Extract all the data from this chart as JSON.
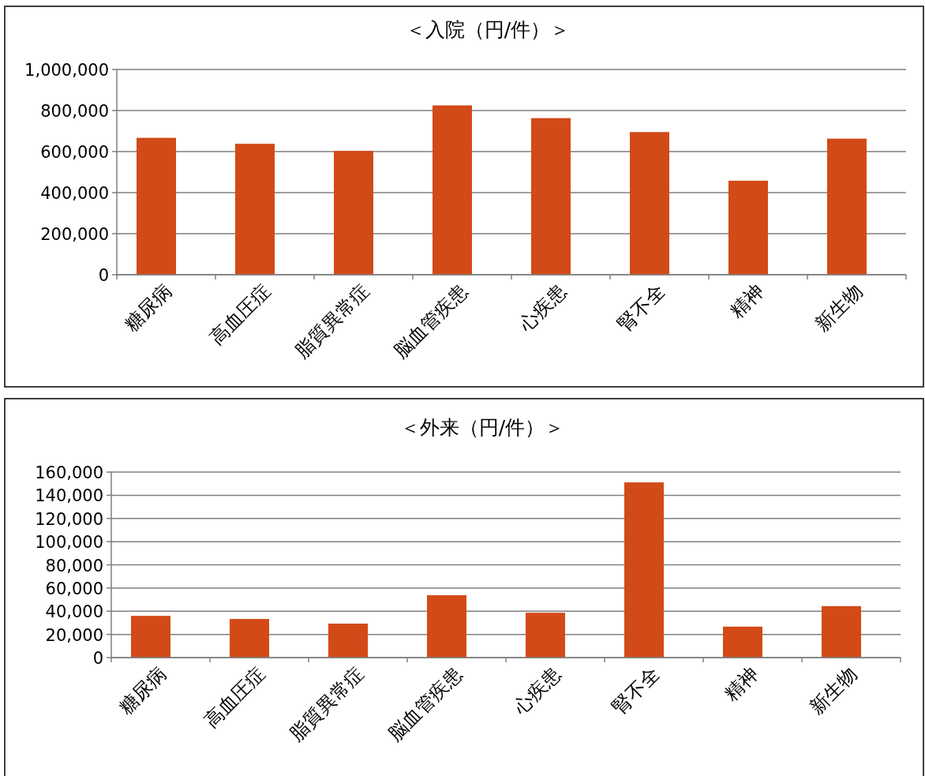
{
  "chart_data": [
    {
      "type": "bar",
      "title": "＜入院（円/件）＞",
      "categories": [
        "糖尿病",
        "高血圧症",
        "脂質異常症",
        "脳血管疾患",
        "心疾患",
        "腎不全",
        "精神",
        "新生物"
      ],
      "values": [
        667000,
        638000,
        603000,
        825000,
        763000,
        695000,
        458000,
        663000
      ],
      "color": "#d24a17",
      "grid": "y",
      "ylim": [
        0,
        1000000
      ],
      "yticks": [
        {
          "value": 0,
          "label": "0"
        },
        {
          "value": 200000,
          "label": "200,000"
        },
        {
          "value": 400000,
          "label": "400,000"
        },
        {
          "value": 600000,
          "label": "600,000"
        },
        {
          "value": 800000,
          "label": "800,000"
        },
        {
          "value": 1000000,
          "label": "1,000,000"
        }
      ]
    },
    {
      "type": "bar",
      "title": "＜外来（円/件）＞",
      "categories": [
        "糖尿病",
        "高血圧症",
        "脂質異常症",
        "脳血管疾患",
        "心疾患",
        "腎不全",
        "精神",
        "新生物"
      ],
      "values": [
        36000,
        33300,
        29300,
        53800,
        38700,
        151100,
        26700,
        44400
      ],
      "color": "#d24a17",
      "grid": "y",
      "ylim": [
        0,
        160000
      ],
      "yticks": [
        {
          "value": 0,
          "label": "0"
        },
        {
          "value": 20000,
          "label": "20,000"
        },
        {
          "value": 40000,
          "label": "40,000"
        },
        {
          "value": 60000,
          "label": "60,000"
        },
        {
          "value": 80000,
          "label": "80,000"
        },
        {
          "value": 100000,
          "label": "100,000"
        },
        {
          "value": 120000,
          "label": "120,000"
        },
        {
          "value": 140000,
          "label": "140,000"
        },
        {
          "value": 160000,
          "label": "160,000"
        }
      ]
    }
  ]
}
